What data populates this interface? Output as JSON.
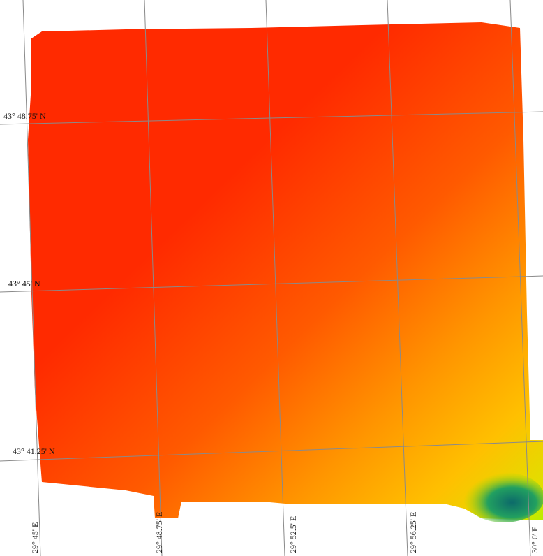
{
  "latitude_labels": [
    "43° 48.75' N",
    "43° 45' N",
    "43° 41.25' N"
  ],
  "longitude_labels": [
    "29° 45' E",
    "29° 48.75' E",
    "29° 52.5' E",
    "29° 56.25' E",
    "30° 0' E"
  ]
}
